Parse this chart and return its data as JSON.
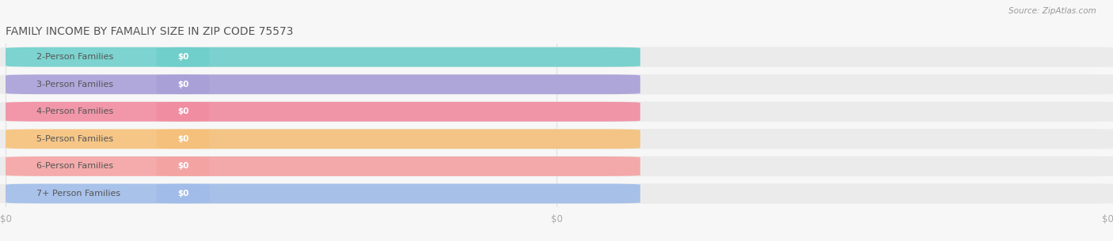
{
  "title": "FAMILY INCOME BY FAMALIY SIZE IN ZIP CODE 75573",
  "source_text": "Source: ZipAtlas.com",
  "categories": [
    "2-Person Families",
    "3-Person Families",
    "4-Person Families",
    "5-Person Families",
    "6-Person Families",
    "7+ Person Families"
  ],
  "values": [
    0,
    0,
    0,
    0,
    0,
    0
  ],
  "bar_colors": [
    "#6ecfca",
    "#a89fd8",
    "#f08ca0",
    "#f5c07a",
    "#f4a2a2",
    "#a0bce8"
  ],
  "background_color": "#f7f7f7",
  "row_bg_color": "#eeeeee",
  "title_color": "#555555",
  "label_text_color": "#555555",
  "value_text_color": "#ffffff",
  "source_color": "#999999",
  "figsize": [
    14.06,
    3.05
  ],
  "dpi": 100
}
